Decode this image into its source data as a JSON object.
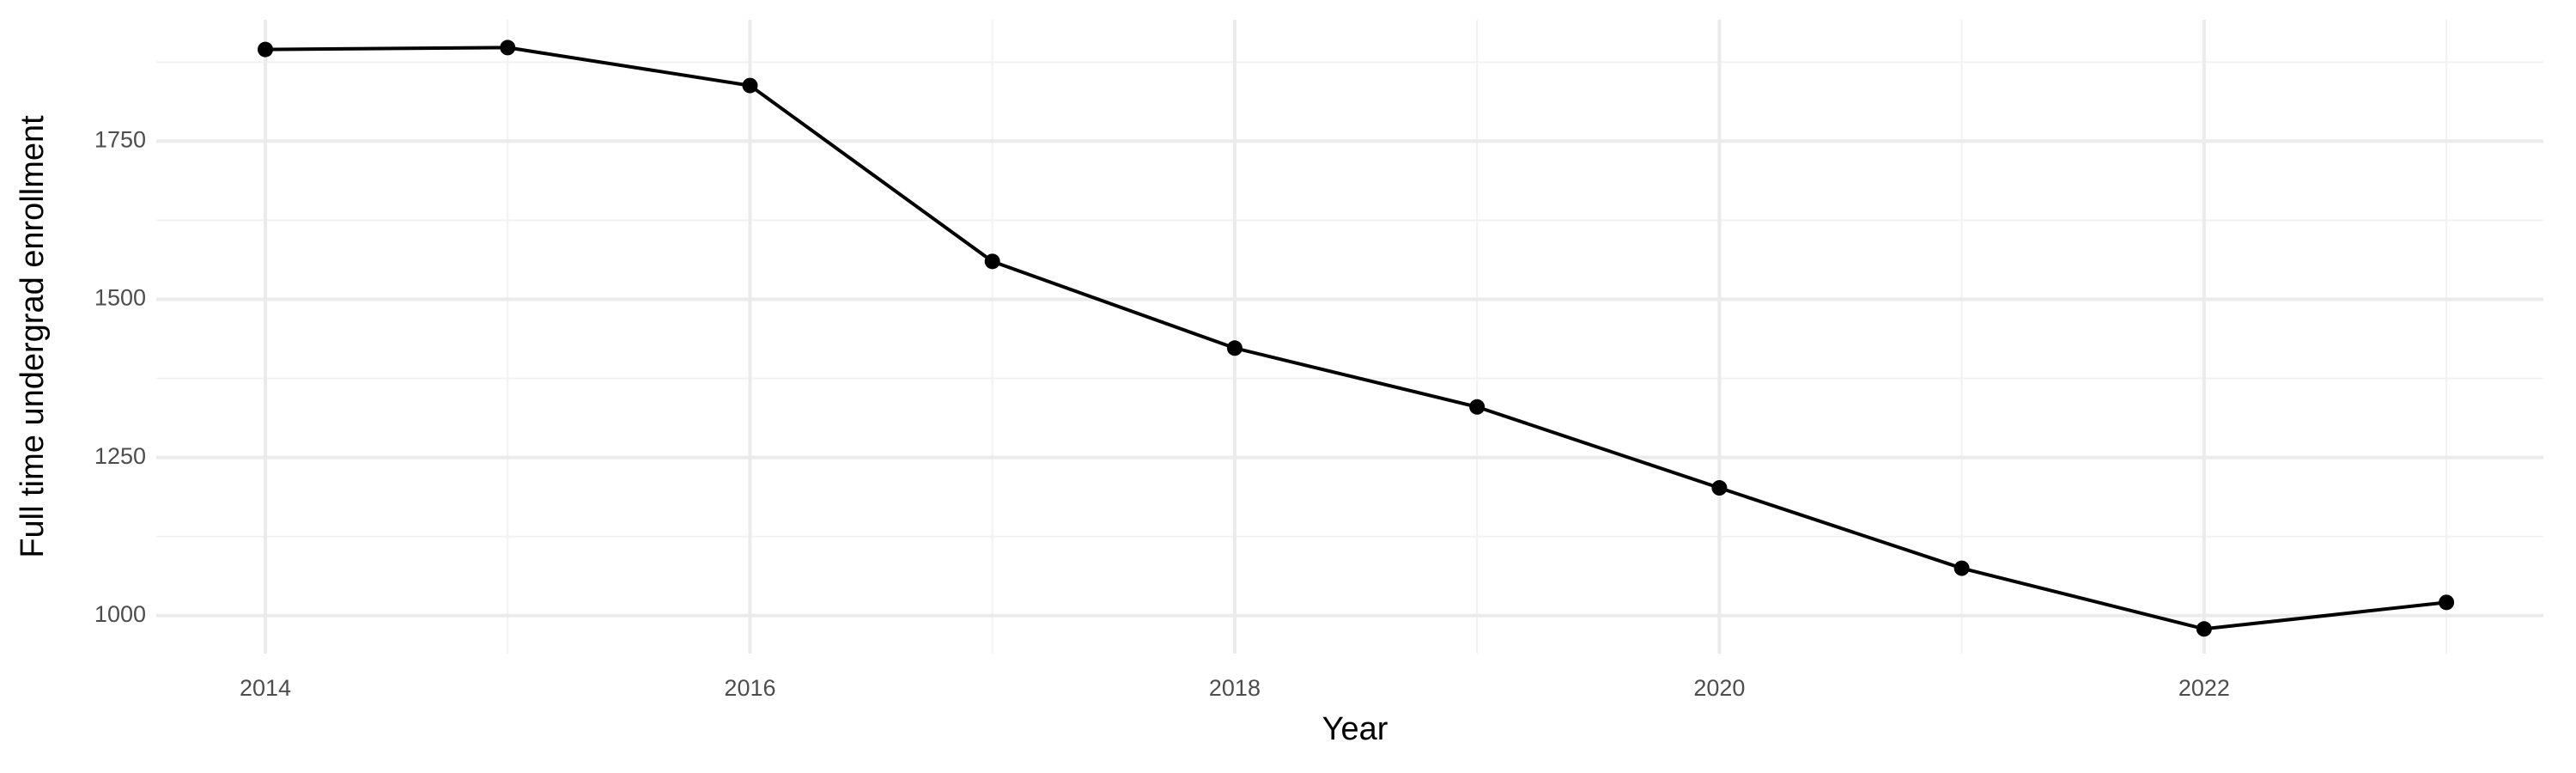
{
  "chart_data": {
    "type": "line",
    "x_label": "Year",
    "y_label": "Full time undergrad enrollment",
    "x": [
      2014,
      2015,
      2016,
      2017,
      2018,
      2019,
      2020,
      2021,
      2022,
      2023
    ],
    "series": [
      {
        "name": "Enrollment",
        "color": "#000000",
        "values": [
          1895,
          1898,
          1838,
          1560,
          1423,
          1330,
          1202,
          1075,
          979,
          1021
        ]
      }
    ],
    "xlim": [
      2013.55,
      2023.4
    ],
    "xticks": [
      2014,
      2016,
      2018,
      2020,
      2022
    ],
    "ylim": [
      940,
      1942
    ],
    "yticks": [
      1000,
      1250,
      1500,
      1750
    ],
    "grid": true
  }
}
